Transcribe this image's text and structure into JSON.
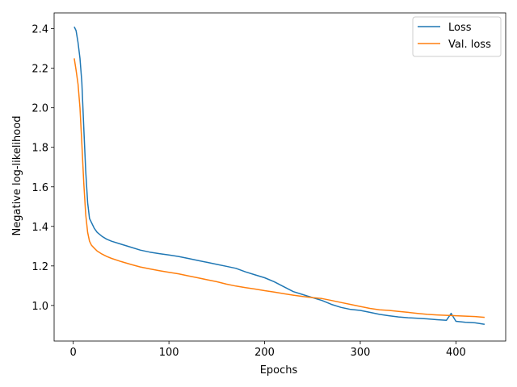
{
  "chart_data": {
    "type": "line",
    "title": "",
    "xlabel": "Epochs",
    "ylabel": "Negative log-likelihood",
    "xlim": [
      -20,
      452
    ],
    "ylim": [
      0.82,
      2.48
    ],
    "xticks": [
      0,
      100,
      200,
      300,
      400
    ],
    "yticks": [
      1.0,
      1.2,
      1.4,
      1.6,
      1.8,
      2.0,
      2.2,
      2.4
    ],
    "grid": false,
    "legend_position": "top-right",
    "series": [
      {
        "name": "Loss",
        "color": "#1f77b4",
        "x": [
          1,
          3,
          5,
          7,
          9,
          11,
          13,
          15,
          17,
          19,
          22,
          25,
          30,
          35,
          40,
          50,
          60,
          70,
          80,
          90,
          100,
          110,
          120,
          130,
          140,
          150,
          160,
          170,
          180,
          190,
          200,
          210,
          220,
          230,
          240,
          250,
          260,
          270,
          280,
          290,
          300,
          310,
          320,
          330,
          340,
          350,
          360,
          370,
          380,
          390,
          395,
          400,
          410,
          420,
          430
        ],
        "y": [
          2.41,
          2.39,
          2.33,
          2.25,
          2.13,
          1.9,
          1.68,
          1.52,
          1.44,
          1.42,
          1.39,
          1.37,
          1.35,
          1.335,
          1.325,
          1.31,
          1.295,
          1.28,
          1.27,
          1.262,
          1.255,
          1.248,
          1.238,
          1.228,
          1.218,
          1.208,
          1.198,
          1.188,
          1.17,
          1.155,
          1.14,
          1.12,
          1.095,
          1.07,
          1.055,
          1.04,
          1.025,
          1.005,
          0.99,
          0.98,
          0.975,
          0.965,
          0.955,
          0.948,
          0.942,
          0.938,
          0.935,
          0.932,
          0.928,
          0.925,
          0.96,
          0.92,
          0.915,
          0.912,
          0.905
        ]
      },
      {
        "name": "Val. loss",
        "color": "#ff7f0e",
        "x": [
          1,
          3,
          5,
          7,
          9,
          11,
          13,
          15,
          17,
          19,
          22,
          25,
          30,
          35,
          40,
          50,
          60,
          70,
          80,
          90,
          100,
          110,
          120,
          130,
          140,
          150,
          160,
          170,
          180,
          190,
          200,
          210,
          220,
          230,
          240,
          250,
          260,
          270,
          280,
          290,
          300,
          310,
          320,
          330,
          340,
          350,
          360,
          370,
          380,
          390,
          400,
          410,
          420,
          430
        ],
        "y": [
          2.25,
          2.19,
          2.12,
          2.0,
          1.82,
          1.62,
          1.46,
          1.37,
          1.325,
          1.305,
          1.29,
          1.275,
          1.26,
          1.248,
          1.238,
          1.222,
          1.208,
          1.195,
          1.185,
          1.176,
          1.168,
          1.16,
          1.15,
          1.14,
          1.13,
          1.12,
          1.108,
          1.098,
          1.09,
          1.083,
          1.075,
          1.068,
          1.06,
          1.052,
          1.045,
          1.04,
          1.035,
          1.025,
          1.015,
          1.005,
          0.995,
          0.985,
          0.978,
          0.975,
          0.97,
          0.965,
          0.96,
          0.955,
          0.952,
          0.95,
          0.948,
          0.946,
          0.944,
          0.94
        ]
      }
    ]
  }
}
